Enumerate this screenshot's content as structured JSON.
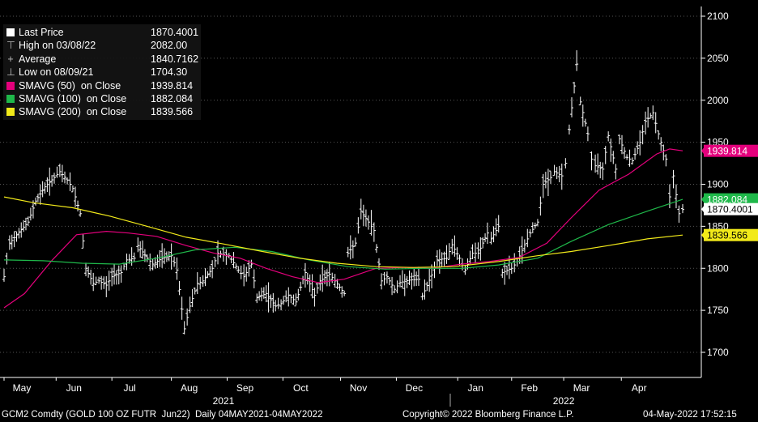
{
  "chart_data": {
    "type": "line",
    "title": "",
    "xlabel": "",
    "ylabel": "",
    "ylim": [
      1665,
      2120
    ],
    "yticks": [
      1700,
      1750,
      1800,
      1850,
      1900,
      1950,
      2000,
      2050,
      2100
    ],
    "y_axis_side": "right",
    "grid": "horizontal, dotted",
    "legend_placement": "top-left",
    "month_labels": [
      {
        "label": "May",
        "date": "2021-05-04"
      },
      {
        "label": "Jun",
        "date": "2021-06-01"
      },
      {
        "label": "Jul",
        "date": "2021-07-01"
      },
      {
        "label": "Aug",
        "date": "2021-08-02"
      },
      {
        "label": "Sep",
        "date": "2021-09-01"
      },
      {
        "label": "Oct",
        "date": "2021-10-01"
      },
      {
        "label": "Nov",
        "date": "2021-11-01"
      },
      {
        "label": "Dec",
        "date": "2021-12-01"
      },
      {
        "label": "Jan",
        "date": "2022-01-03"
      },
      {
        "label": "Feb",
        "date": "2022-02-01"
      },
      {
        "label": "Mar",
        "date": "2022-03-01"
      },
      {
        "label": "Apr",
        "date": "2022-04-01"
      }
    ],
    "year_labels": [
      {
        "label": "2021",
        "date": "2021-08-30"
      },
      {
        "label": "2022",
        "date": "2022-03-01"
      }
    ],
    "x_range": [
      "2021-05-04",
      "2022-05-04"
    ],
    "legend": [
      {
        "label": "Last Price",
        "value": "1870.4001",
        "color": "#ffffff",
        "marker": "square"
      },
      {
        "label": "High on 03/08/22",
        "value": "2082.00",
        "color": "#bbbbbb",
        "marker": "high"
      },
      {
        "label": "Average",
        "value": "1840.7162",
        "color": "#bbbbbb",
        "marker": "avg"
      },
      {
        "label": "Low on 08/09/21",
        "value": "1704.30",
        "color": "#bbbbbb",
        "marker": "low"
      },
      {
        "label": "SMAVG (50)  on Close",
        "value": "1939.814",
        "color": "#e4007c",
        "marker": "square"
      },
      {
        "label": "SMAVG (100)  on Close",
        "value": "1882.084",
        "color": "#1fb84a",
        "marker": "square"
      },
      {
        "label": "SMAVG (200)  on Close",
        "value": "1839.566",
        "color": "#f2ea1a",
        "marker": "square"
      }
    ],
    "right_tags": [
      {
        "value": 1939.814,
        "text": "1939.814",
        "bg": "#e4007c",
        "fg": "#ffffff"
      },
      {
        "value": 1882.084,
        "text": "1882.084",
        "bg": "#1fb84a",
        "fg": "#ffffff"
      },
      {
        "value": 1870.4001,
        "text": "1870.4001",
        "bg": "#ffffff",
        "fg": "#000000"
      },
      {
        "value": 1839.566,
        "text": "1839.566",
        "bg": "#f2ea1a",
        "fg": "#000000"
      }
    ],
    "series": [
      {
        "name": "Last Price",
        "color": "#ffffff",
        "points": [
          [
            "2021-05-04",
            1790
          ],
          [
            "2021-05-07",
            1830
          ],
          [
            "2021-05-12",
            1843
          ],
          [
            "2021-05-17",
            1855
          ],
          [
            "2021-05-21",
            1880
          ],
          [
            "2021-05-26",
            1897
          ],
          [
            "2021-05-31",
            1908
          ],
          [
            "2021-06-03",
            1915
          ],
          [
            "2021-06-07",
            1905
          ],
          [
            "2021-06-10",
            1895
          ],
          [
            "2021-06-14",
            1865
          ],
          [
            "2021-06-17",
            1800
          ],
          [
            "2021-06-21",
            1782
          ],
          [
            "2021-06-24",
            1785
          ],
          [
            "2021-06-28",
            1780
          ],
          [
            "2021-07-01",
            1790
          ],
          [
            "2021-07-06",
            1795
          ],
          [
            "2021-07-09",
            1810
          ],
          [
            "2021-07-13",
            1812
          ],
          [
            "2021-07-15",
            1827
          ],
          [
            "2021-07-20",
            1812
          ],
          [
            "2021-07-23",
            1805
          ],
          [
            "2021-07-28",
            1812
          ],
          [
            "2021-08-02",
            1815
          ],
          [
            "2021-08-05",
            1798
          ],
          [
            "2021-08-09",
            1728
          ],
          [
            "2021-08-12",
            1755
          ],
          [
            "2021-08-16",
            1782
          ],
          [
            "2021-08-19",
            1785
          ],
          [
            "2021-08-24",
            1800
          ],
          [
            "2021-08-27",
            1818
          ],
          [
            "2021-09-02",
            1815
          ],
          [
            "2021-09-07",
            1798
          ],
          [
            "2021-09-10",
            1790
          ],
          [
            "2021-09-14",
            1805
          ],
          [
            "2021-09-17",
            1765
          ],
          [
            "2021-09-22",
            1770
          ],
          [
            "2021-09-27",
            1755
          ],
          [
            "2021-09-30",
            1758
          ],
          [
            "2021-10-04",
            1768
          ],
          [
            "2021-10-08",
            1760
          ],
          [
            "2021-10-13",
            1795
          ],
          [
            "2021-10-18",
            1768
          ],
          [
            "2021-10-21",
            1785
          ],
          [
            "2021-10-26",
            1793
          ],
          [
            "2021-10-29",
            1785
          ],
          [
            "2021-11-03",
            1770
          ],
          [
            "2021-11-05",
            1818
          ],
          [
            "2021-11-09",
            1830
          ],
          [
            "2021-11-12",
            1868
          ],
          [
            "2021-11-16",
            1855
          ],
          [
            "2021-11-19",
            1845
          ],
          [
            "2021-11-23",
            1785
          ],
          [
            "2021-11-26",
            1790
          ],
          [
            "2021-11-30",
            1775
          ],
          [
            "2021-12-03",
            1783
          ],
          [
            "2021-12-08",
            1786
          ],
          [
            "2021-12-13",
            1787
          ],
          [
            "2021-12-15",
            1767
          ],
          [
            "2021-12-20",
            1792
          ],
          [
            "2021-12-23",
            1810
          ],
          [
            "2021-12-28",
            1812
          ],
          [
            "2021-12-31",
            1828
          ],
          [
            "2022-01-04",
            1812
          ],
          [
            "2022-01-07",
            1798
          ],
          [
            "2022-01-11",
            1818
          ],
          [
            "2022-01-14",
            1818
          ],
          [
            "2022-01-19",
            1842
          ],
          [
            "2022-01-21",
            1835
          ],
          [
            "2022-01-25",
            1850
          ],
          [
            "2022-01-27",
            1795
          ],
          [
            "2022-02-01",
            1800
          ],
          [
            "2022-02-04",
            1808
          ],
          [
            "2022-02-08",
            1828
          ],
          [
            "2022-02-11",
            1842
          ],
          [
            "2022-02-15",
            1855
          ],
          [
            "2022-02-18",
            1900
          ],
          [
            "2022-02-22",
            1908
          ],
          [
            "2022-02-24",
            1915
          ],
          [
            "2022-02-28",
            1910
          ],
          [
            "2022-03-02",
            1925
          ],
          [
            "2022-03-04",
            1965
          ],
          [
            "2022-03-08",
            2043
          ],
          [
            "2022-03-10",
            1998
          ],
          [
            "2022-03-14",
            1960
          ],
          [
            "2022-03-16",
            1930
          ],
          [
            "2022-03-18",
            1922
          ],
          [
            "2022-03-22",
            1918
          ],
          [
            "2022-03-25",
            1958
          ],
          [
            "2022-03-29",
            1918
          ],
          [
            "2022-03-31",
            1954
          ],
          [
            "2022-04-04",
            1932
          ],
          [
            "2022-04-07",
            1928
          ],
          [
            "2022-04-11",
            1950
          ],
          [
            "2022-04-14",
            1975
          ],
          [
            "2022-04-18",
            1985
          ],
          [
            "2022-04-21",
            1960
          ],
          [
            "2022-04-25",
            1930
          ],
          [
            "2022-04-27",
            1885
          ],
          [
            "2022-04-29",
            1910
          ],
          [
            "2022-05-02",
            1865
          ],
          [
            "2022-05-04",
            1870
          ]
        ]
      },
      {
        "name": "SMAVG (50)  on Close",
        "color": "#e4007c",
        "points": [
          [
            "2021-05-04",
            1753
          ],
          [
            "2021-05-15",
            1770
          ],
          [
            "2021-05-30",
            1810
          ],
          [
            "2021-06-12",
            1840
          ],
          [
            "2021-06-28",
            1844
          ],
          [
            "2021-07-10",
            1842
          ],
          [
            "2021-07-25",
            1838
          ],
          [
            "2021-08-10",
            1827
          ],
          [
            "2021-08-25",
            1818
          ],
          [
            "2021-09-08",
            1812
          ],
          [
            "2021-09-22",
            1800
          ],
          [
            "2021-10-06",
            1790
          ],
          [
            "2021-10-20",
            1783
          ],
          [
            "2021-11-03",
            1787
          ],
          [
            "2021-11-20",
            1800
          ],
          [
            "2021-12-05",
            1801
          ],
          [
            "2021-12-20",
            1800
          ],
          [
            "2022-01-05",
            1805
          ],
          [
            "2022-01-20",
            1808
          ],
          [
            "2022-02-05",
            1813
          ],
          [
            "2022-02-20",
            1830
          ],
          [
            "2022-03-05",
            1860
          ],
          [
            "2022-03-20",
            1893
          ],
          [
            "2022-04-05",
            1912
          ],
          [
            "2022-04-20",
            1936
          ],
          [
            "2022-04-27",
            1942
          ],
          [
            "2022-05-04",
            1939.8
          ]
        ]
      },
      {
        "name": "SMAVG (100)  on Close",
        "color": "#1fb84a",
        "points": [
          [
            "2021-05-04",
            1810
          ],
          [
            "2021-05-25",
            1809
          ],
          [
            "2021-06-15",
            1806
          ],
          [
            "2021-07-05",
            1805
          ],
          [
            "2021-07-25",
            1812
          ],
          [
            "2021-08-15",
            1822
          ],
          [
            "2021-09-05",
            1825
          ],
          [
            "2021-09-25",
            1820
          ],
          [
            "2021-10-15",
            1810
          ],
          [
            "2021-11-05",
            1802
          ],
          [
            "2021-11-25",
            1799
          ],
          [
            "2021-12-15",
            1800
          ],
          [
            "2022-01-05",
            1800
          ],
          [
            "2022-01-25",
            1804
          ],
          [
            "2022-02-15",
            1812
          ],
          [
            "2022-03-05",
            1832
          ],
          [
            "2022-03-25",
            1852
          ],
          [
            "2022-04-15",
            1868
          ],
          [
            "2022-05-04",
            1882.1
          ]
        ]
      },
      {
        "name": "SMAVG (200)  on Close",
        "color": "#f2ea1a",
        "points": [
          [
            "2021-05-04",
            1885
          ],
          [
            "2021-05-20",
            1878
          ],
          [
            "2021-06-10",
            1872
          ],
          [
            "2021-06-30",
            1862
          ],
          [
            "2021-07-20",
            1850
          ],
          [
            "2021-08-10",
            1837
          ],
          [
            "2021-08-30",
            1829
          ],
          [
            "2021-09-20",
            1820
          ],
          [
            "2021-10-10",
            1812
          ],
          [
            "2021-10-30",
            1806
          ],
          [
            "2021-11-20",
            1802
          ],
          [
            "2021-12-10",
            1801
          ],
          [
            "2022-01-01",
            1802
          ],
          [
            "2022-01-25",
            1808
          ],
          [
            "2022-02-15",
            1815
          ],
          [
            "2022-03-05",
            1820
          ],
          [
            "2022-03-25",
            1827
          ],
          [
            "2022-04-15",
            1835
          ],
          [
            "2022-05-04",
            1839.6
          ]
        ]
      }
    ]
  },
  "footer": {
    "ticker": "GCM2 Comdty (GOLD 100 OZ FUTR  Jun22)  Daily 04MAY2021-04MAY2022",
    "copyright": "Copyright© 2022 Bloomberg Finance L.P.",
    "timestamp": "04-May-2022 17:52:15"
  }
}
